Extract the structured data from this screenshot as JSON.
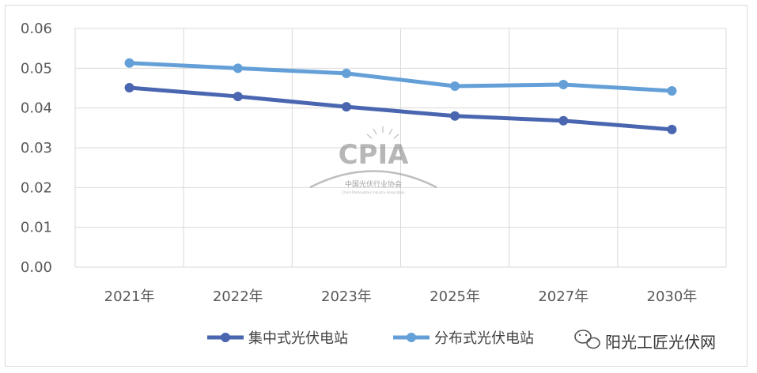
{
  "chart_data": {
    "type": "line",
    "categories": [
      "2021年",
      "2022年",
      "2023年",
      "2025年",
      "2027年",
      "2030年"
    ],
    "series": [
      {
        "name": "集中式光伏电站",
        "color": "#4a66b0",
        "values": [
          0.0451,
          0.0429,
          0.0403,
          0.038,
          0.0368,
          0.0346
        ]
      },
      {
        "name": "分布式光伏电站",
        "color": "#64a0d7",
        "values": [
          0.0513,
          0.05,
          0.0487,
          0.0455,
          0.0459,
          0.0443
        ]
      }
    ],
    "ylim": [
      0,
      0.06
    ],
    "yticks": [
      "0.00",
      "0.01",
      "0.02",
      "0.03",
      "0.04",
      "0.05",
      "0.06"
    ],
    "grid": true,
    "legend_position": "bottom"
  },
  "watermark": {
    "logo_text": "CPIA",
    "org_name": "中国光伏行业协会",
    "org_name_en": "China Photovoltaic Industry Association"
  },
  "source_badge": {
    "text": "阳光工匠光伏网",
    "icon": "wechat-icon"
  }
}
